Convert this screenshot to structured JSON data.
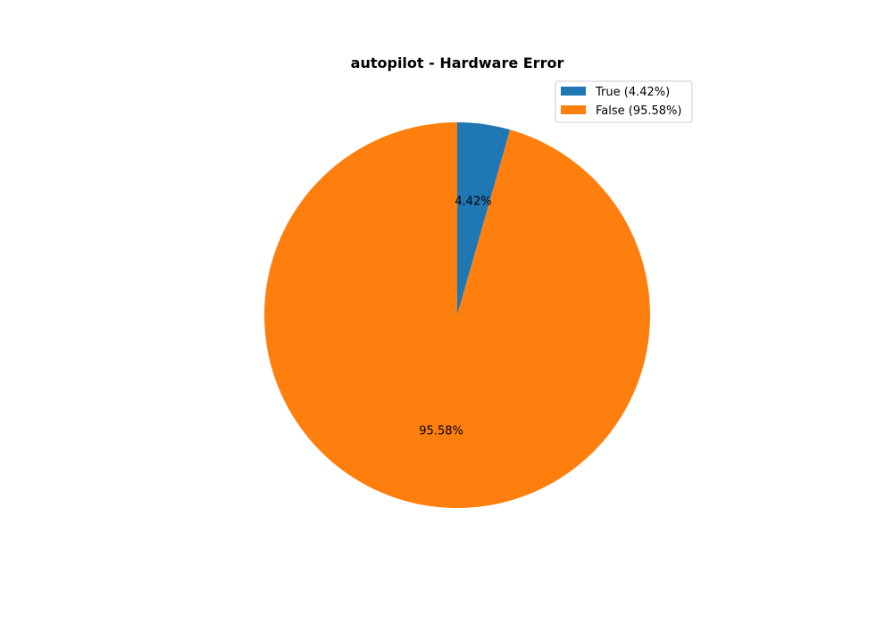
{
  "chart_data": {
    "type": "pie",
    "title": "autopilot - Hardware Error",
    "slices": [
      {
        "label": "True",
        "value": 4.42,
        "pct_label": "4.42%",
        "legend_label": "True (4.42%)",
        "color": "#1f77b4"
      },
      {
        "label": "False",
        "value": 95.58,
        "pct_label": "95.58%",
        "legend_label": "False (95.58%)",
        "color": "#ff7f0e"
      }
    ],
    "start_angle": 90,
    "direction": "clockwise",
    "legend_position": "upper right"
  }
}
